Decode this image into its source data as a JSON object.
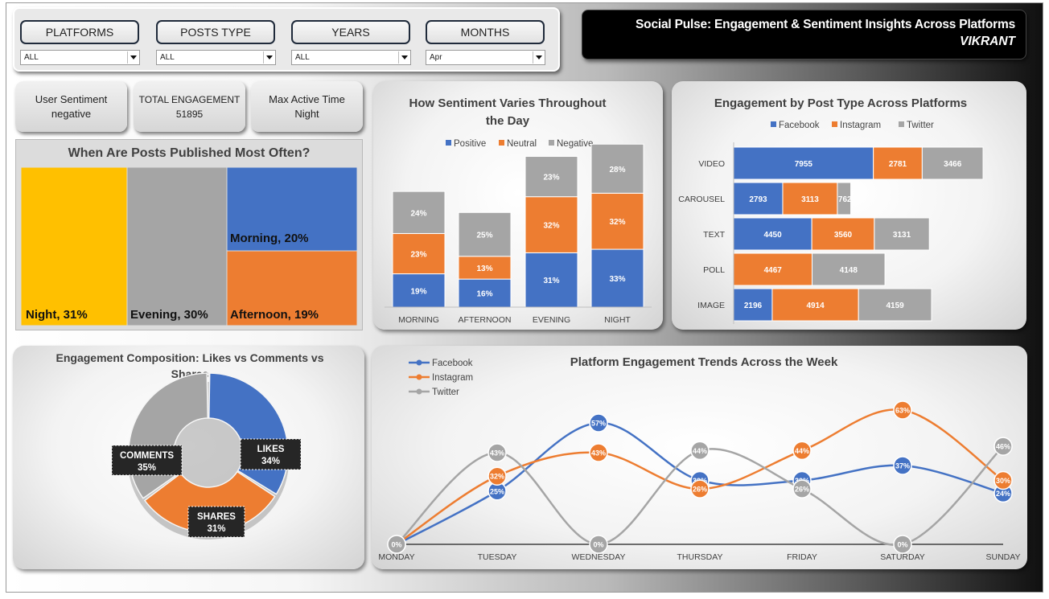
{
  "filters": [
    {
      "label": "PLATFORMS",
      "value": "ALL"
    },
    {
      "label": "POSTS TYPE",
      "value": "ALL"
    },
    {
      "label": "YEARS",
      "value": "ALL"
    },
    {
      "label": "MONTHS",
      "value": "Apr"
    }
  ],
  "header": {
    "title": "Social Pulse: Engagement & Sentiment Insights Across Platforms",
    "author": "VIKRANT"
  },
  "kpis": [
    {
      "label": "User Sentiment",
      "value": "negative"
    },
    {
      "label": "TOTAL ENGAGEMENT",
      "value": "51895"
    },
    {
      "label": "Max Active Time",
      "value": "Night"
    }
  ],
  "treemap": {
    "title": "When Are Posts Published Most Often?",
    "cells": [
      {
        "label": "Night, 31%",
        "value": 31,
        "color": "#ffc000"
      },
      {
        "label": "Evening, 30%",
        "value": 30,
        "color": "#a5a5a5"
      },
      {
        "label": "Morning, 20%",
        "value": 20,
        "color": "#4472c4"
      },
      {
        "label": "Afternoon, 19%",
        "value": 19,
        "color": "#ed7d31"
      }
    ]
  },
  "sentiment_chart": {
    "title_line1": "How Sentiment Varies Throughout",
    "title_line2": "the Day"
  },
  "engagement_post_chart": {
    "title": "Engagement by Post Type Across Platforms"
  },
  "donut_chart": {
    "title_line1": "Engagement Composition: Likes vs Comments vs",
    "title_line2": "Shares"
  },
  "trend_chart": {
    "title": "Platform Engagement Trends Across the Week"
  },
  "colors": {
    "facebook": "#4472c4",
    "instagram": "#ed7d31",
    "twitter": "#a5a5a5"
  },
  "chart_data": [
    {
      "type": "bar",
      "stacked": true,
      "title": "How Sentiment Varies Throughout the Day",
      "categories": [
        "MORNING",
        "AFTERNOON",
        "EVENING",
        "NIGHT"
      ],
      "series": [
        {
          "name": "Positive",
          "values": [
            19,
            16,
            31,
            33
          ],
          "labels": [
            "19%",
            "16%",
            "31%",
            "33%"
          ]
        },
        {
          "name": "Neutral",
          "values": [
            23,
            13,
            32,
            32
          ],
          "labels": [
            "23%",
            "13%",
            "32%",
            "32%"
          ]
        },
        {
          "name": "Negative",
          "values": [
            24,
            25,
            23,
            28
          ],
          "labels": [
            "24%",
            "25%",
            "23%",
            "28%"
          ]
        }
      ],
      "legend": "top"
    },
    {
      "type": "bar",
      "orientation": "horizontal",
      "stacked": true,
      "title": "Engagement by Post Type Across Platforms",
      "categories": [
        "VIDEO",
        "CAROUSEL",
        "TEXT",
        "POLL",
        "IMAGE"
      ],
      "series": [
        {
          "name": "Facebook",
          "values": [
            7955,
            2793,
            4450,
            0,
            2196
          ]
        },
        {
          "name": "Instagram",
          "values": [
            2781,
            3113,
            3560,
            4467,
            4914
          ]
        },
        {
          "name": "Twitter",
          "values": [
            3466,
            762,
            3131,
            4148,
            4159
          ]
        }
      ],
      "legend": "top"
    },
    {
      "type": "pie",
      "donut": true,
      "title": "Engagement Composition: Likes vs Comments vs Shares",
      "slices": [
        {
          "name": "LIKES",
          "value": 34,
          "label": "34%"
        },
        {
          "name": "SHARES",
          "value": 31,
          "label": "31%"
        },
        {
          "name": "COMMENTS",
          "value": 35,
          "label": "35%"
        }
      ]
    },
    {
      "type": "line",
      "smooth": true,
      "title": "Platform Engagement Trends Across the Week",
      "categories": [
        "MONDAY",
        "TUESDAY",
        "WEDNESDAY",
        "THURSDAY",
        "FRIDAY",
        "SATURDAY",
        "SUNDAY"
      ],
      "series": [
        {
          "name": "Facebook",
          "values": [
            0,
            25,
            57,
            30,
            30,
            37,
            24
          ],
          "labels": [
            "0%",
            "25%",
            "57%",
            "30%",
            "30%",
            "37%",
            "24%"
          ]
        },
        {
          "name": "Instagram",
          "values": [
            0,
            32,
            43,
            26,
            44,
            63,
            30
          ],
          "labels": [
            "0%",
            "32%",
            "43%",
            "26%",
            "44%",
            "63%",
            "30%"
          ]
        },
        {
          "name": "Twitter",
          "values": [
            0,
            43,
            0,
            44,
            26,
            0,
            46
          ],
          "labels": [
            "0%",
            "43%",
            "0%",
            "44%",
            "26%",
            "0%",
            "46%"
          ]
        }
      ],
      "legend": "top-left"
    }
  ]
}
